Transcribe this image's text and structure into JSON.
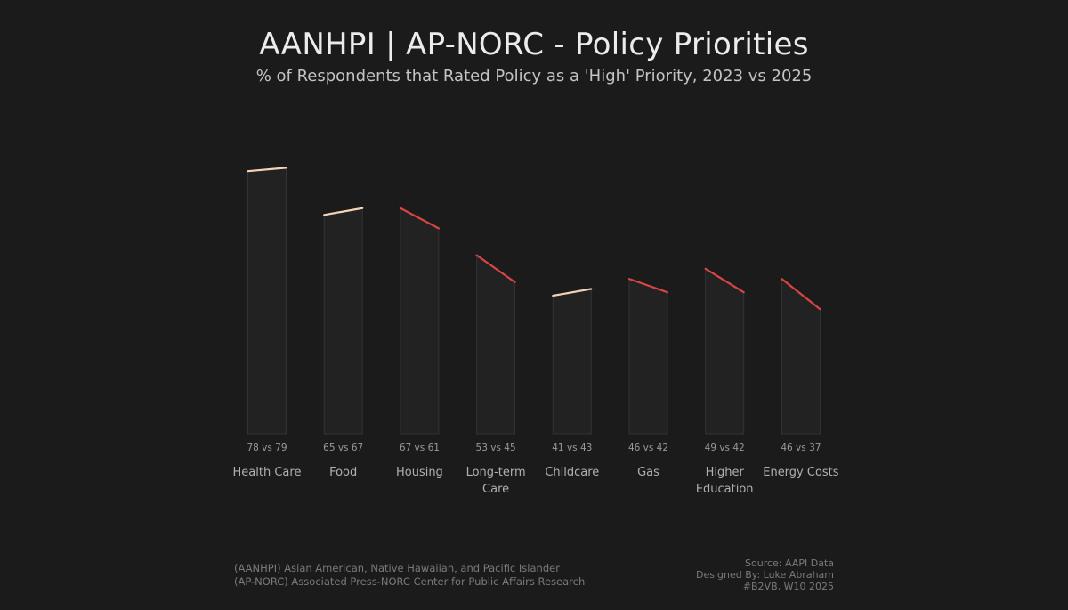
{
  "header": {
    "title": "AANHPI | AP-NORC - Policy Priorities",
    "subtitle": "% of Respondents that Rated Policy as a 'High' Priority, 2023 vs 2025"
  },
  "footnotes": {
    "left": [
      "(AANHPI) Asian American, Native Hawaiian, and Pacific Islander",
      "(AP-NORC) Associated Press-NORC Center for Public Affairs Research"
    ],
    "right": [
      "Source: AAPI Data",
      "Designed By: Luke Abraham",
      "#B2VB, W10 2025"
    ]
  },
  "colors": {
    "background": "#1b1b1b",
    "increase": "#f6d3b7",
    "decrease": "#d94545",
    "bar_fill": "#222222",
    "bar_stroke": "#333333"
  },
  "chart_data": {
    "type": "slope-bar",
    "title": "AANHPI | AP-NORC - Policy Priorities",
    "subtitle": "% of Respondents that Rated Policy as a 'High' Priority, 2023 vs 2025",
    "series_names": [
      "2023",
      "2025"
    ],
    "ylim": [
      0,
      80
    ],
    "grid": false,
    "categories": [
      {
        "name": "Health Care",
        "label_lines": [
          "Health Care"
        ],
        "v2023": 78,
        "v2025": 79,
        "value_label": "78 vs 79"
      },
      {
        "name": "Food",
        "label_lines": [
          "Food"
        ],
        "v2023": 65,
        "v2025": 67,
        "value_label": "65 vs 67"
      },
      {
        "name": "Housing",
        "label_lines": [
          "Housing"
        ],
        "v2023": 67,
        "v2025": 61,
        "value_label": "67 vs 61"
      },
      {
        "name": "Long-term Care",
        "label_lines": [
          "Long-term",
          "Care"
        ],
        "v2023": 53,
        "v2025": 45,
        "value_label": "53 vs 45"
      },
      {
        "name": "Childcare",
        "label_lines": [
          "Childcare"
        ],
        "v2023": 41,
        "v2025": 43,
        "value_label": "41 vs 43"
      },
      {
        "name": "Gas",
        "label_lines": [
          "Gas"
        ],
        "v2023": 46,
        "v2025": 42,
        "value_label": "46 vs 42"
      },
      {
        "name": "Higher Education",
        "label_lines": [
          "Higher",
          "Education"
        ],
        "v2023": 49,
        "v2025": 42,
        "value_label": "49 vs 42"
      },
      {
        "name": "Energy Costs",
        "label_lines": [
          "Energy Costs"
        ],
        "v2023": 46,
        "v2025": 37,
        "value_label": "46 vs 37"
      }
    ]
  }
}
